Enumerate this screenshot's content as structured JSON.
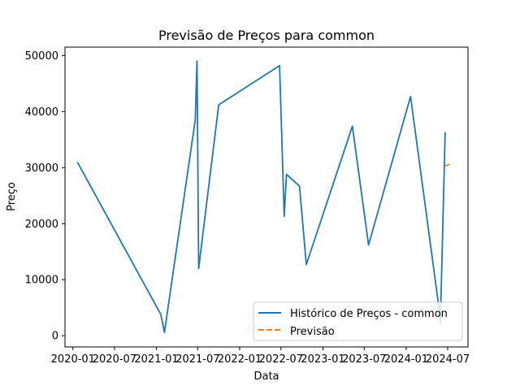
{
  "chart_data": {
    "type": "line",
    "title": "Previsão de Preços para common",
    "xlabel": "Data",
    "ylabel": "Preço",
    "xlim": [
      "2019-11-27",
      "2024-09-28"
    ],
    "ylim": [
      -2000,
      51500
    ],
    "x_tick_labels": [
      "2020-01",
      "2020-07",
      "2021-01",
      "2021-07",
      "2022-01",
      "2022-07",
      "2023-01",
      "2023-07",
      "2024-01",
      "2024-07"
    ],
    "y_ticks": [
      0,
      10000,
      20000,
      30000,
      40000,
      50000
    ],
    "y_tick_labels": [
      "0",
      "10000",
      "20000",
      "30000",
      "40000",
      "50000"
    ],
    "grid": false,
    "legend_position": "lower right",
    "series": [
      {
        "name": "Histórico de Preços - common",
        "color": "#1f77b4",
        "style": "solid",
        "x": [
          "2020-01-20",
          "2021-01-20",
          "2021-02-05",
          "2021-06-20",
          "2021-06-28",
          "2021-07-05",
          "2021-10-01",
          "2022-06-25",
          "2022-07-15",
          "2022-07-25",
          "2022-09-20",
          "2022-10-20",
          "2023-05-10",
          "2023-07-20",
          "2024-01-20",
          "2024-05-22",
          "2024-05-30",
          "2024-06-20"
        ],
        "y": [
          31000,
          3800,
          600,
          38500,
          49000,
          12000,
          41200,
          48200,
          21300,
          28800,
          26700,
          12700,
          37400,
          16200,
          42700,
          5500,
          2300,
          36300
        ]
      },
      {
        "name": "Previsão",
        "color": "#ff7f0e",
        "style": "dashed",
        "x": [
          "2024-06-20",
          "2024-07-10"
        ],
        "y": [
          30300,
          30600
        ]
      }
    ]
  }
}
